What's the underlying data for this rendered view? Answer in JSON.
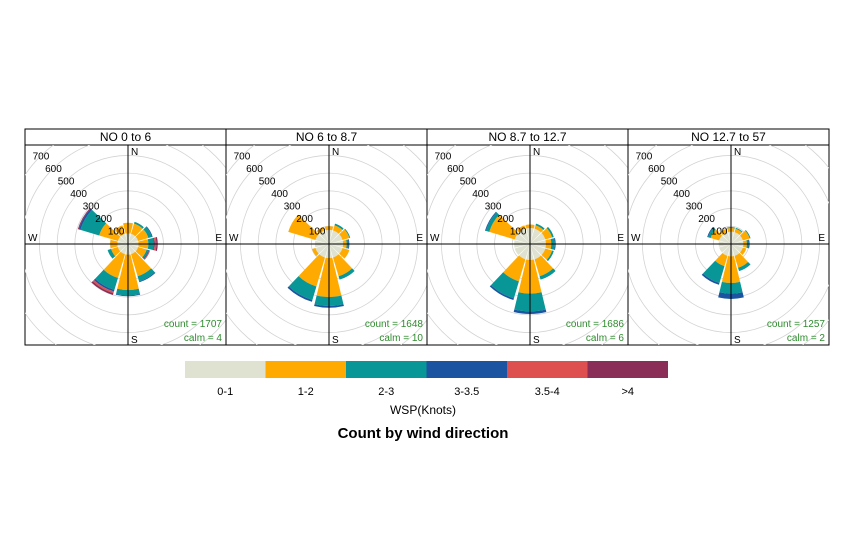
{
  "chart_data": {
    "type": "windrose",
    "title": "Count by wind direction",
    "legend_title": "WSP(Knots)",
    "legend_position": "bottom",
    "rlim": [
      0,
      700
    ],
    "r_ticks": [
      100,
      200,
      300,
      400,
      500,
      600,
      700
    ],
    "grid": true,
    "directions": [
      "N",
      "E",
      "S",
      "W"
    ],
    "speed_bins": [
      {
        "label": "0-1",
        "color": "#DFE2D0"
      },
      {
        "label": "1-2",
        "color": "#FFAA00"
      },
      {
        "label": "2-3",
        "color": "#089696"
      },
      {
        "label": "3-3.5",
        "color": "#1B54A0"
      },
      {
        "label": "3.5-4",
        "color": "#DE4F4F"
      },
      {
        "label": ">4",
        "color": "#8B2E57"
      }
    ],
    "sector_angles": [
      0,
      30,
      60,
      90,
      120,
      150,
      180,
      210,
      240,
      270,
      300,
      330
    ],
    "panels": [
      {
        "title": "NO 0 to 6",
        "count_text": "count = 1707",
        "calm_text": "calm = 4",
        "sectors": [
          [
            60,
            60,
            0,
            0,
            0,
            0
          ],
          [
            60,
            60,
            10,
            0,
            0,
            0
          ],
          [
            60,
            60,
            20,
            5,
            0,
            0
          ],
          [
            60,
            55,
            30,
            5,
            10,
            8
          ],
          [
            60,
            50,
            10,
            5,
            5,
            0
          ],
          [
            60,
            130,
            30,
            5,
            0,
            0
          ],
          [
            60,
            200,
            30,
            5,
            0,
            0
          ],
          [
            60,
            140,
            70,
            10,
            10,
            10
          ],
          [
            60,
            40,
            20,
            0,
            0,
            0
          ],
          [
            60,
            40,
            0,
            0,
            0,
            0
          ],
          [
            60,
            110,
            110,
            10,
            0,
            5
          ],
          [
            60,
            50,
            0,
            0,
            0,
            0
          ]
        ]
      },
      {
        "title": "NO 6 to 8.7",
        "count_text": "count = 1648",
        "calm_text": "calm = 10",
        "sectors": [
          [
            80,
            20,
            0,
            0,
            0,
            0
          ],
          [
            80,
            30,
            10,
            0,
            0,
            0
          ],
          [
            80,
            40,
            5,
            0,
            0,
            0
          ],
          [
            80,
            20,
            10,
            5,
            0,
            0
          ],
          [
            80,
            40,
            0,
            0,
            0,
            0
          ],
          [
            80,
            110,
            20,
            0,
            0,
            0
          ],
          [
            80,
            220,
            50,
            10,
            0,
            0
          ],
          [
            80,
            170,
            80,
            10,
            0,
            0
          ],
          [
            80,
            20,
            0,
            0,
            0,
            0
          ],
          [
            80,
            0,
            0,
            0,
            0,
            0
          ],
          [
            80,
            160,
            0,
            0,
            0,
            0
          ],
          [
            80,
            20,
            0,
            0,
            0,
            0
          ]
        ]
      },
      {
        "title": "NO 8.7 to 12.7",
        "count_text": "count = 1686",
        "calm_text": "calm = 6",
        "sectors": [
          [
            90,
            20,
            0,
            0,
            0,
            0
          ],
          [
            90,
            20,
            10,
            0,
            0,
            0
          ],
          [
            90,
            40,
            10,
            0,
            0,
            0
          ],
          [
            90,
            30,
            20,
            5,
            0,
            0
          ],
          [
            90,
            40,
            10,
            0,
            0,
            0
          ],
          [
            90,
            100,
            20,
            0,
            0,
            0
          ],
          [
            90,
            190,
            100,
            15,
            0,
            0
          ],
          [
            90,
            130,
            100,
            10,
            0,
            0
          ],
          [
            90,
            0,
            0,
            0,
            0,
            0
          ],
          [
            90,
            0,
            0,
            0,
            0,
            0
          ],
          [
            90,
            150,
            20,
            5,
            0,
            0
          ],
          [
            90,
            20,
            0,
            0,
            0,
            0
          ]
        ]
      },
      {
        "title": "NO 12.7 to 57",
        "count_text": "count = 1257",
        "calm_text": "calm = 2",
        "sectors": [
          [
            70,
            20,
            5,
            0,
            0,
            0
          ],
          [
            70,
            20,
            5,
            0,
            0,
            0
          ],
          [
            70,
            40,
            5,
            0,
            0,
            0
          ],
          [
            70,
            20,
            10,
            5,
            0,
            0
          ],
          [
            70,
            20,
            0,
            0,
            0,
            0
          ],
          [
            70,
            70,
            20,
            0,
            0,
            0
          ],
          [
            70,
            150,
            60,
            30,
            0,
            0
          ],
          [
            70,
            60,
            100,
            10,
            0,
            0
          ],
          [
            70,
            0,
            0,
            0,
            0,
            0
          ],
          [
            70,
            0,
            0,
            0,
            0,
            0
          ],
          [
            70,
            50,
            15,
            5,
            0,
            0
          ],
          [
            70,
            20,
            0,
            0,
            0,
            0
          ]
        ]
      }
    ]
  }
}
